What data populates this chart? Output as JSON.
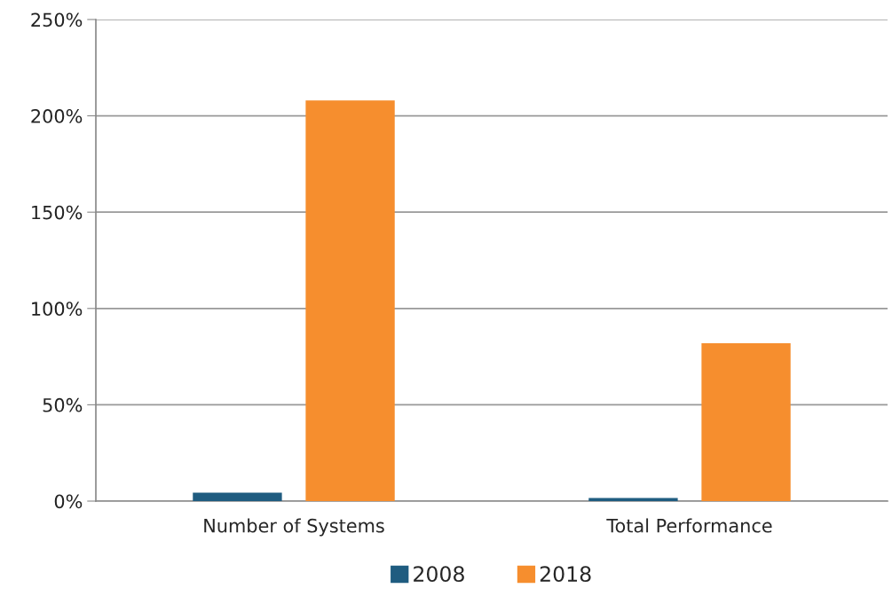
{
  "chart_data": {
    "type": "bar",
    "categories": [
      "Number of Systems",
      "Total Performance"
    ],
    "series": [
      {
        "name": "2008",
        "color": "#1f5c80",
        "values": [
          4.4,
          1.6
        ]
      },
      {
        "name": "2018",
        "color": "#f68e2e",
        "values": [
          208,
          82
        ]
      }
    ],
    "ylim": [
      0,
      250
    ],
    "yticks": [
      {
        "value": 0,
        "label": "0%"
      },
      {
        "value": 50,
        "label": "50%"
      },
      {
        "value": 100,
        "label": "100%"
      },
      {
        "value": 150,
        "label": "150%"
      },
      {
        "value": 200,
        "label": "200%"
      },
      {
        "value": 250,
        "label": "250%"
      }
    ],
    "grid": "y",
    "legend": "bottom"
  }
}
